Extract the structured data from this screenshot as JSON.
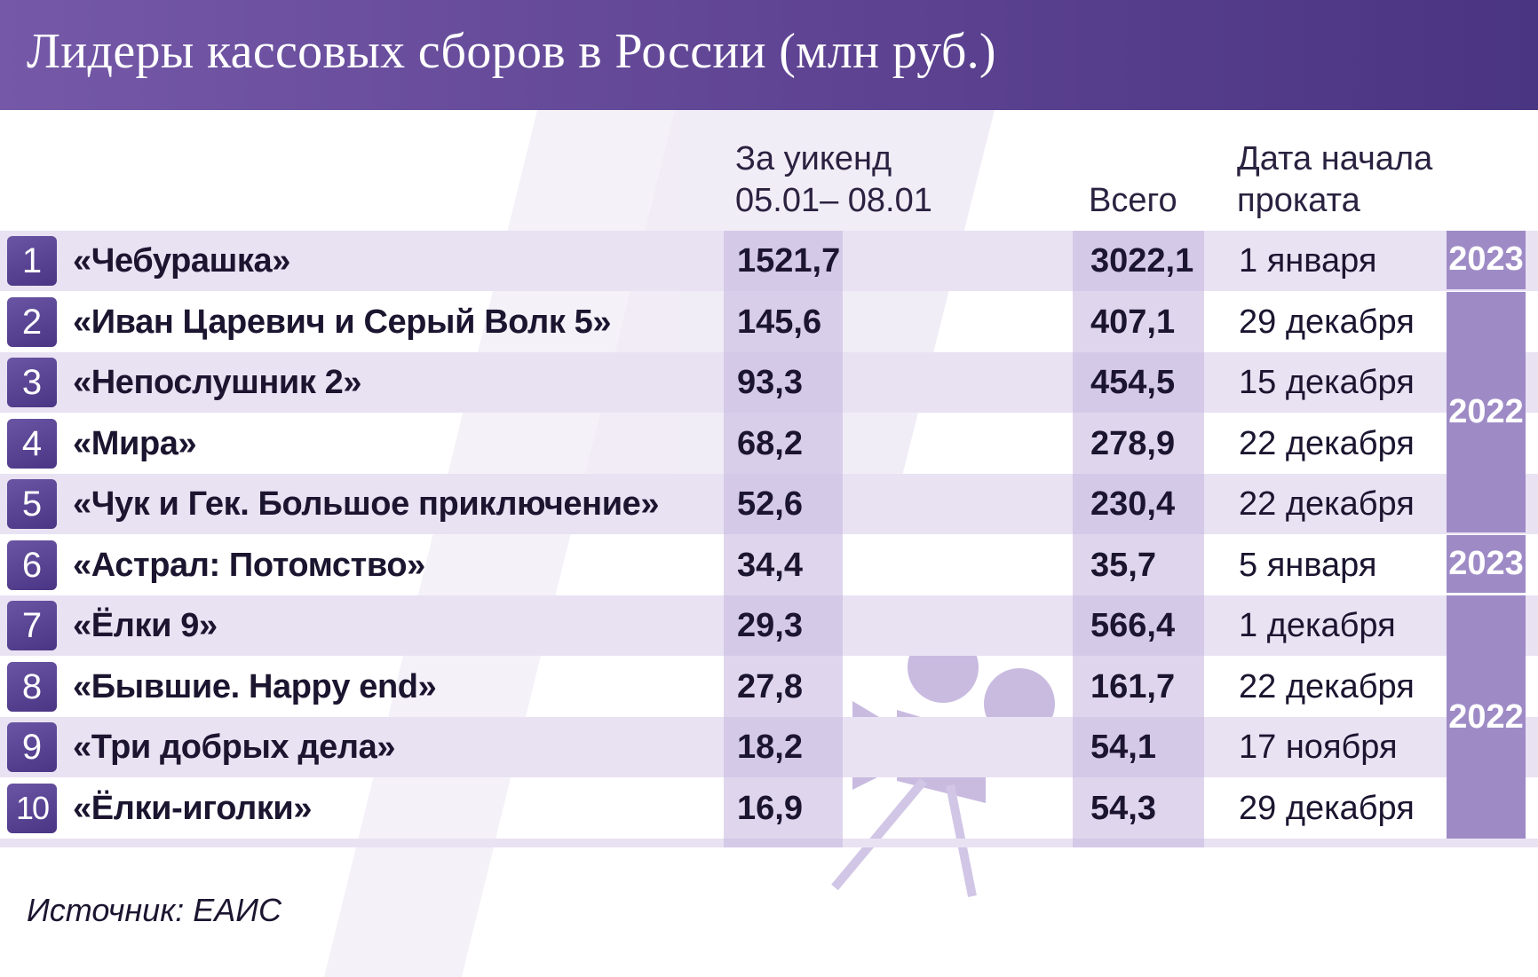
{
  "colors": {
    "header_start": "#7559a8",
    "header_end": "#4a3582",
    "band": "#e9e2f3",
    "column_shade": "#c4b4de",
    "rank_badge": "#5a4494",
    "year_badge": "#9e8bc6",
    "decoration": "#d9cfe8"
  },
  "decoration_icons": [
    "film-strip-icon",
    "movie-camera-icon"
  ],
  "chart_data": {
    "type": "table",
    "title": "Лидеры кассовых сборов в России (млн руб.)",
    "columns": {
      "weekend_line1": "За уикенд",
      "weekend_line2": "05.01– 08.01",
      "total": "Всего",
      "date_line1": "Дата начала",
      "date_line2": "проката"
    },
    "rows": [
      {
        "rank": "1",
        "title": "«Чебурашка»",
        "weekend": "1521,7",
        "total": "3022,1",
        "date": "1 января"
      },
      {
        "rank": "2",
        "title": "«Иван Царевич и Серый Волк 5»",
        "weekend": "145,6",
        "total": "407,1",
        "date": "29 декабря"
      },
      {
        "rank": "3",
        "title": "«Непослушник 2»",
        "weekend": "93,3",
        "total": "454,5",
        "date": "15 декабря"
      },
      {
        "rank": "4",
        "title": "«Мира»",
        "weekend": "68,2",
        "total": "278,9",
        "date": "22 декабря"
      },
      {
        "rank": "5",
        "title": "«Чук и Гек. Большое приключение»",
        "weekend": "52,6",
        "total": "230,4",
        "date": "22 декабря"
      },
      {
        "rank": "6",
        "title": "«Астрал: Потомство»",
        "weekend": "34,4",
        "total": "35,7",
        "date": "5 января"
      },
      {
        "rank": "7",
        "title": "«Ёлки 9»",
        "weekend": "29,3",
        "total": "566,4",
        "date": "1 декабря"
      },
      {
        "rank": "8",
        "title": "«Бывшие. Happy end»",
        "weekend": "27,8",
        "total": "161,7",
        "date": "22 декабря"
      },
      {
        "rank": "9",
        "title": "«Три добрых дела»",
        "weekend": "18,2",
        "total": "54,1",
        "date": "17 ноября"
      },
      {
        "rank": "10",
        "title": "«Ёлки-иголки»",
        "weekend": "16,9",
        "total": "54,3",
        "date": "29 декабря"
      }
    ],
    "year_groups": [
      {
        "label": "2023",
        "from_row": 0,
        "to_row": 0
      },
      {
        "label": "2022",
        "from_row": 1,
        "to_row": 4
      },
      {
        "label": "2023",
        "from_row": 5,
        "to_row": 5
      },
      {
        "label": "2022",
        "from_row": 6,
        "to_row": 9
      }
    ],
    "source": "Источник: ЕАИС"
  }
}
